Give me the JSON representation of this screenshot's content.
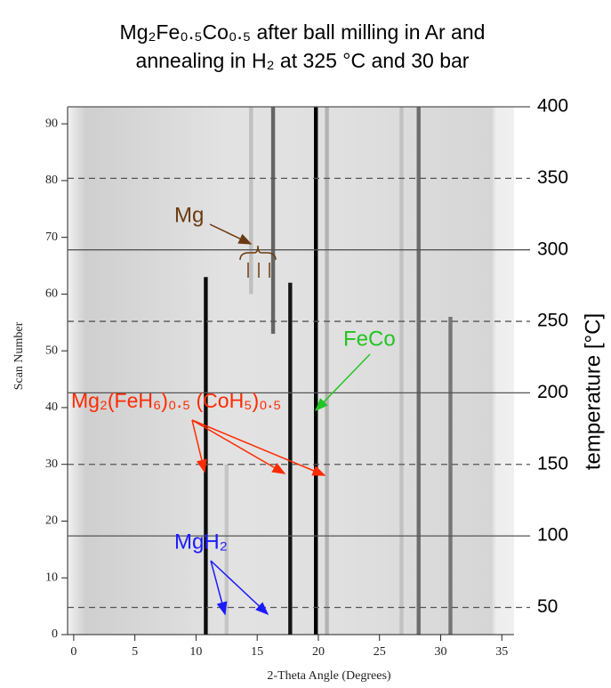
{
  "chart_data": {
    "type": "xrd",
    "title": [
      "Mg₂Fe₀.₅Co₀.₅ after ball milling in Ar and",
      "annealing in H₂ at 325 °C and 30 bar"
    ],
    "x_label": "2-Theta Angle (Degrees)",
    "y_label": "Scan Number",
    "y2_label": "temperature [°C]",
    "xlim": [
      -0.5,
      36
    ],
    "xticks": [
      0,
      5,
      10,
      15,
      20,
      25,
      30,
      35
    ],
    "ylim": [
      0,
      93
    ],
    "yticks": [
      0,
      10,
      20,
      30,
      40,
      50,
      60,
      70,
      80,
      90
    ],
    "y2lim": [
      31,
      400
    ],
    "y2ticks": [
      50,
      100,
      150,
      200,
      250,
      300,
      350,
      400
    ],
    "y2grid": true,
    "peaks": {
      "x": [
        10.8,
        17.7,
        19.8,
        16.3,
        28.2,
        30.8,
        14.5,
        12.5,
        20.7,
        26.8
      ],
      "scan_start": [
        0,
        0,
        0,
        53,
        0,
        0,
        60,
        0,
        0,
        0
      ],
      "scan_end": [
        63,
        62,
        93,
        93,
        93,
        56,
        93,
        30,
        93,
        93
      ],
      "intensity": [
        0.95,
        0.9,
        1.0,
        0.55,
        0.5,
        0.45,
        0.15,
        0.12,
        0.2,
        0.12
      ]
    },
    "annotations": [
      {
        "text": "Mg",
        "color": "#6b3a10"
      },
      {
        "text": "FeCo",
        "color": "#22c422"
      },
      {
        "text": "Mg₂(FeH₆)₀.₅ (CoH₅)₀.₅",
        "color": "#ff2a00"
      },
      {
        "text": "MgH₂",
        "color": "#1a1aff"
      }
    ]
  }
}
